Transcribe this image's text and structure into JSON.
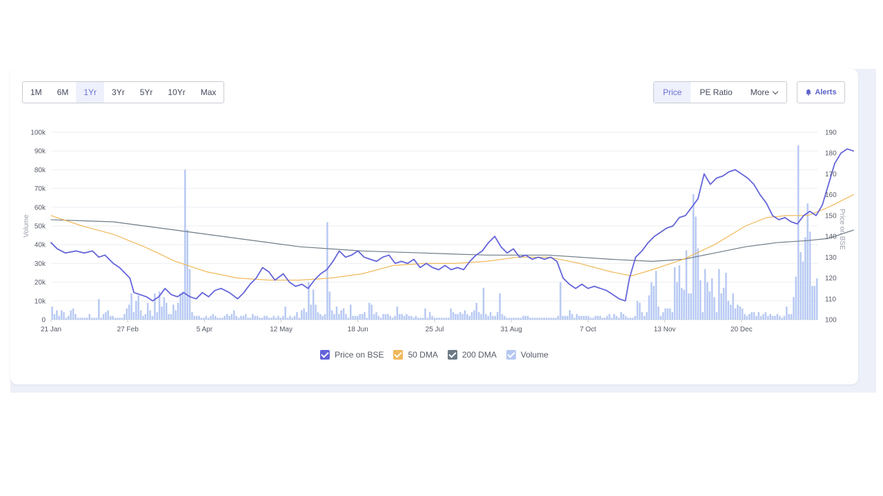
{
  "toolbar": {
    "ranges": [
      "1M",
      "6M",
      "1Yr",
      "3Yr",
      "5Yr",
      "10Yr",
      "Max"
    ],
    "active_range": "1Yr",
    "metrics": [
      "Price",
      "PE Ratio"
    ],
    "active_metric": "Price",
    "more_label": "More",
    "alerts_label": "Alerts"
  },
  "colors": {
    "price": "#6363d9",
    "dma50": "#f0b85a",
    "dma200": "#6c7a86",
    "volume": "#b7c9f3"
  },
  "chart_data": {
    "type": "line",
    "x_ticks": [
      "21 Jan",
      "27 Feb",
      "5 Apr",
      "12 May",
      "18 Jun",
      "25 Jul",
      "31 Aug",
      "7 Oct",
      "13 Nov",
      "20 Dec"
    ],
    "y_left": {
      "label": "Volume",
      "ticks": [
        "0",
        "10k",
        "20k",
        "30k",
        "40k",
        "50k",
        "60k",
        "70k",
        "80k",
        "90k",
        "100k"
      ],
      "range": [
        0,
        100000
      ]
    },
    "y_right": {
      "label": "Price on BSE",
      "ticks": [
        "100",
        "110",
        "120",
        "130",
        "140",
        "150",
        "160",
        "170",
        "180",
        "190"
      ],
      "range": [
        100,
        190
      ]
    },
    "x_range": [
      0,
      370
    ],
    "grid": true,
    "legend_position": "bottom",
    "series": [
      {
        "name": "Price on BSE",
        "points": [
          [
            0,
            137
          ],
          [
            3,
            134
          ],
          [
            7,
            132
          ],
          [
            12,
            133
          ],
          [
            16,
            132
          ],
          [
            20,
            133
          ],
          [
            23,
            130
          ],
          [
            26,
            131
          ],
          [
            30,
            127
          ],
          [
            33,
            125
          ],
          [
            36,
            122
          ],
          [
            38,
            120
          ],
          [
            40,
            113
          ],
          [
            43,
            112
          ],
          [
            46,
            111
          ],
          [
            49,
            109
          ],
          [
            52,
            111
          ],
          [
            55,
            115
          ],
          [
            58,
            112
          ],
          [
            61,
            111
          ],
          [
            64,
            113
          ],
          [
            67,
            111
          ],
          [
            70,
            110
          ],
          [
            73,
            113
          ],
          [
            76,
            111
          ],
          [
            79,
            114
          ],
          [
            82,
            115
          ],
          [
            86,
            113
          ],
          [
            90,
            110
          ],
          [
            93,
            113
          ],
          [
            96,
            117
          ],
          [
            99,
            120
          ],
          [
            102,
            125
          ],
          [
            105,
            123
          ],
          [
            108,
            119
          ],
          [
            112,
            122
          ],
          [
            115,
            118
          ],
          [
            118,
            116
          ],
          [
            121,
            117
          ],
          [
            124,
            115
          ],
          [
            127,
            119
          ],
          [
            130,
            122
          ],
          [
            133,
            124
          ],
          [
            136,
            128
          ],
          [
            139,
            133
          ],
          [
            142,
            130
          ],
          [
            145,
            131
          ],
          [
            148,
            133
          ],
          [
            151,
            130
          ],
          [
            154,
            129
          ],
          [
            157,
            128
          ],
          [
            160,
            130
          ],
          [
            163,
            131
          ],
          [
            166,
            127
          ],
          [
            169,
            128
          ],
          [
            172,
            127
          ],
          [
            175,
            129
          ],
          [
            178,
            125
          ],
          [
            181,
            127
          ],
          [
            184,
            125
          ],
          [
            187,
            124
          ],
          [
            190,
            126
          ],
          [
            193,
            124
          ],
          [
            196,
            125
          ],
          [
            199,
            124
          ],
          [
            202,
            128
          ],
          [
            205,
            131
          ],
          [
            208,
            133
          ],
          [
            211,
            137
          ],
          [
            214,
            140
          ],
          [
            217,
            135
          ],
          [
            220,
            132
          ],
          [
            223,
            134
          ],
          [
            226,
            130
          ],
          [
            229,
            131
          ],
          [
            232,
            129
          ],
          [
            235,
            130
          ],
          [
            238,
            129
          ],
          [
            241,
            130
          ],
          [
            244,
            128
          ],
          [
            247,
            120
          ],
          [
            250,
            117
          ],
          [
            253,
            115
          ],
          [
            256,
            117
          ],
          [
            259,
            115
          ],
          [
            262,
            116
          ],
          [
            265,
            115
          ],
          [
            268,
            114
          ],
          [
            271,
            112
          ],
          [
            274,
            110
          ],
          [
            277,
            109
          ],
          [
            279,
            120
          ],
          [
            282,
            130
          ],
          [
            285,
            133
          ],
          [
            288,
            137
          ],
          [
            291,
            140
          ],
          [
            294,
            142
          ],
          [
            297,
            144
          ],
          [
            300,
            145
          ],
          [
            303,
            149
          ],
          [
            306,
            150
          ],
          [
            309,
            154
          ],
          [
            312,
            158
          ],
          [
            315,
            170
          ],
          [
            318,
            165
          ],
          [
            321,
            168
          ],
          [
            324,
            169
          ],
          [
            327,
            171
          ],
          [
            330,
            172
          ],
          [
            333,
            170
          ],
          [
            336,
            168
          ],
          [
            339,
            165
          ],
          [
            342,
            160
          ],
          [
            345,
            156
          ],
          [
            348,
            150
          ],
          [
            351,
            148
          ],
          [
            354,
            149
          ],
          [
            357,
            147
          ],
          [
            360,
            146
          ],
          [
            363,
            150
          ],
          [
            366,
            152
          ],
          [
            369,
            150
          ],
          [
            372,
            155
          ],
          [
            375,
            165
          ],
          [
            378,
            175
          ],
          [
            381,
            180
          ],
          [
            384,
            182
          ],
          [
            387,
            181
          ]
        ]
      },
      {
        "name": "50 DMA",
        "points": [
          [
            0,
            150
          ],
          [
            15,
            145
          ],
          [
            30,
            141
          ],
          [
            45,
            135
          ],
          [
            60,
            128
          ],
          [
            75,
            123
          ],
          [
            90,
            120
          ],
          [
            105,
            119
          ],
          [
            120,
            119
          ],
          [
            135,
            120
          ],
          [
            150,
            122
          ],
          [
            165,
            126
          ],
          [
            180,
            127
          ],
          [
            195,
            127
          ],
          [
            210,
            128
          ],
          [
            225,
            130
          ],
          [
            240,
            130
          ],
          [
            255,
            127
          ],
          [
            270,
            123
          ],
          [
            280,
            121
          ],
          [
            290,
            124
          ],
          [
            305,
            129
          ],
          [
            320,
            136
          ],
          [
            335,
            145
          ],
          [
            345,
            149
          ],
          [
            355,
            150
          ],
          [
            365,
            150
          ],
          [
            375,
            154
          ],
          [
            387,
            160
          ]
        ]
      },
      {
        "name": "200 DMA",
        "points": [
          [
            0,
            148
          ],
          [
            30,
            147
          ],
          [
            60,
            143
          ],
          [
            90,
            139
          ],
          [
            120,
            135
          ],
          [
            150,
            133
          ],
          [
            180,
            132
          ],
          [
            210,
            131
          ],
          [
            240,
            131
          ],
          [
            270,
            129
          ],
          [
            290,
            128
          ],
          [
            305,
            129
          ],
          [
            320,
            132
          ],
          [
            335,
            135
          ],
          [
            350,
            137
          ],
          [
            365,
            138
          ],
          [
            375,
            139
          ],
          [
            387,
            143
          ]
        ]
      },
      {
        "name": "Volume",
        "values": [
          7000,
          3000,
          5000,
          2000,
          5000,
          4000,
          1000,
          2000,
          5000,
          6000,
          3000,
          1000,
          1000,
          1000,
          1000,
          1000,
          3000,
          1000,
          1000,
          1000,
          11000,
          1000,
          3000,
          4000,
          5000,
          2000,
          2000,
          1000,
          1000,
          1000,
          1000,
          3000,
          6000,
          8000,
          14000,
          4000,
          10000,
          13000,
          5000,
          2000,
          3000,
          9000,
          5000,
          2000,
          14000,
          4000,
          15000,
          7000,
          12000,
          9000,
          3000,
          3000,
          8000,
          5000,
          9000,
          14000,
          15000,
          80000,
          48000,
          27000,
          4000,
          2000,
          2000,
          2000,
          1000,
          1000,
          2000,
          1000,
          2000,
          3000,
          2000,
          1000,
          1000,
          1000,
          2000,
          3000,
          2000,
          3000,
          5000,
          2000,
          1000,
          2000,
          2000,
          3000,
          1000,
          1000,
          3000,
          2000,
          2000,
          1000,
          1000,
          2000,
          2000,
          1000,
          1000,
          2000,
          1000,
          2000,
          1000,
          2000,
          7000,
          1000,
          2000,
          1000,
          2000,
          4000,
          1000,
          5000,
          6000,
          4000,
          20000,
          8000,
          16000,
          8000,
          4000,
          3000,
          2000,
          3000,
          52000,
          15000,
          5000,
          3000,
          7000,
          3000,
          5000,
          6000,
          3000,
          1000,
          8000,
          2000,
          2000,
          2000,
          3000,
          3000,
          4000,
          1000,
          9000,
          8000,
          3000,
          4000,
          2000,
          1000,
          3000,
          3000,
          3000,
          2000,
          1000,
          2000,
          7000,
          3000,
          3000,
          2000,
          3000,
          2000,
          2000,
          1000,
          2000,
          1000,
          1000,
          1000,
          6000,
          1000,
          4000,
          2000,
          1000,
          1000,
          1000,
          1000,
          1000,
          1000,
          1000,
          6000,
          4000,
          3000,
          3000,
          4000,
          3000,
          5000,
          3000,
          2000,
          4000,
          5000,
          9000,
          4000,
          3000,
          17000,
          3000,
          2000,
          4000,
          2000,
          2000,
          4000,
          14000,
          3000,
          2000,
          1000,
          1000,
          1000,
          1000,
          1000,
          1000,
          1000,
          2000,
          2000,
          2000,
          1000,
          1000,
          1000,
          1000,
          1000,
          1000,
          1000,
          1000,
          1000,
          1000,
          1000,
          1000,
          2000,
          20000,
          2000,
          2000,
          2000,
          5000,
          3000,
          1000,
          3000,
          2000,
          2000,
          2000,
          2000,
          2000,
          1000,
          1000,
          2000,
          2000,
          2000,
          1000,
          1000,
          2000,
          3000,
          1000,
          3000,
          2000,
          1000,
          4000,
          3000,
          2000,
          1000,
          1000,
          1000,
          2000,
          10000,
          9000,
          4000,
          2000,
          4000,
          13000,
          20000,
          18000,
          26000,
          7000,
          2000,
          4000,
          6000,
          6000,
          6000,
          4000,
          28000,
          20000,
          29000,
          17000,
          16000,
          37000,
          14000,
          14000,
          67000,
          55000,
          38000,
          21000,
          4000,
          27000,
          20000,
          15000,
          22000,
          12000,
          4000,
          27000,
          14000,
          17000,
          25000,
          10000,
          8000,
          14000,
          6000,
          8000,
          7000,
          6000,
          3000,
          2000,
          3000,
          4000,
          4000,
          2000,
          4000,
          2000,
          3000,
          4000,
          2000,
          3000,
          2000,
          2000,
          3000,
          2000,
          1000,
          2000,
          7000,
          3000,
          3000,
          12000,
          23000,
          93000,
          36000,
          31000,
          44000,
          62000,
          47000,
          18000,
          18000,
          22000
        ]
      }
    ]
  },
  "legend": [
    {
      "label": "Price on BSE",
      "color": "#6363d9"
    },
    {
      "label": "50 DMA",
      "color": "#f0b85a"
    },
    {
      "label": "200 DMA",
      "color": "#6c7a86"
    },
    {
      "label": "Volume",
      "color": "#b7c9f3"
    }
  ]
}
